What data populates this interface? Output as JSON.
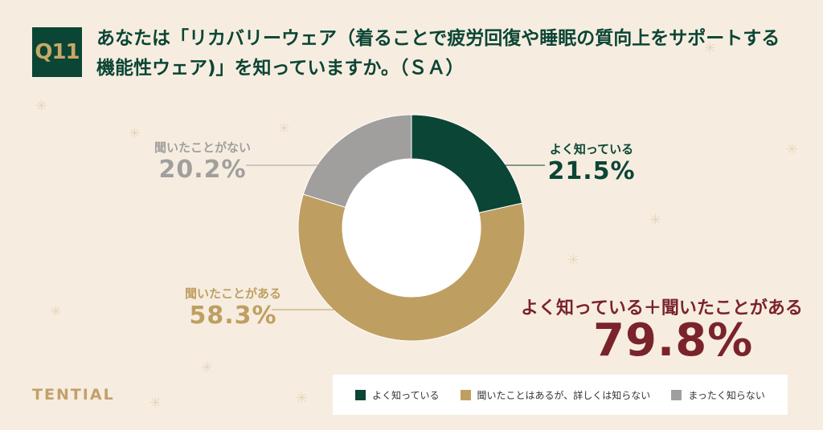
{
  "header": {
    "badge": "Q11",
    "question_line1": "あなたは「リカバリーウェア（着ることで疲労回復や睡眠の質向上をサポートする",
    "question_line2": "機能性ウェア)」を知っていますか。（ＳＡ）"
  },
  "brand": "TENTIAL",
  "colors": {
    "dark_green": "#0b4535",
    "gold": "#bf9f61",
    "gray": "#a19f9d",
    "maroon": "#7a232b",
    "background": "#f6ede0"
  },
  "chart_data": {
    "type": "pie",
    "donut": true,
    "start": "top",
    "direction": "clockwise",
    "slices": [
      {
        "label": "よく知っている",
        "legend": "よく知っている",
        "value": 21.5,
        "display": "21.5%",
        "color": "#0b4535"
      },
      {
        "label": "聞いたことがある",
        "legend": "聞いたことはあるが、詳しくは知らない",
        "value": 58.3,
        "display": "58.3%",
        "color": "#bf9f61"
      },
      {
        "label": "聞いたことがない",
        "legend": "まったく知らない",
        "value": 20.2,
        "display": "20.2%",
        "color": "#a19f9d"
      }
    ],
    "annotation": {
      "label": "よく知っている＋聞いたことがある",
      "value": 79.8,
      "display": "79.8%"
    },
    "legend_position": "bottom-right"
  }
}
